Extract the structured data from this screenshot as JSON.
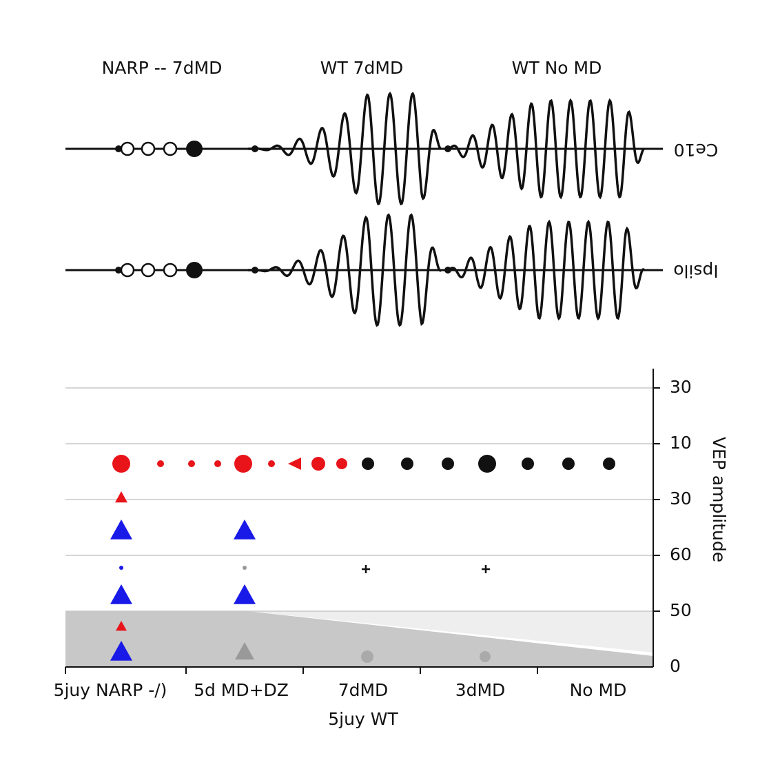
{
  "top_panel": {
    "titles": [
      "NARP -- 7dMD",
      "WT 7dMD",
      "WT No MD"
    ],
    "rows": [
      "Ce10",
      "Ipsilo"
    ]
  },
  "bottom_panel": {
    "y_tick_labels": [
      "30",
      "10",
      "30",
      "60",
      "50",
      "0"
    ],
    "y_axis_label": "VEP amplitude",
    "categories": [
      "No MD",
      "3dMD",
      "7dMD",
      "5d MD+DZ",
      "5juy NARP -/)"
    ],
    "group_label": "5juy WT"
  }
}
